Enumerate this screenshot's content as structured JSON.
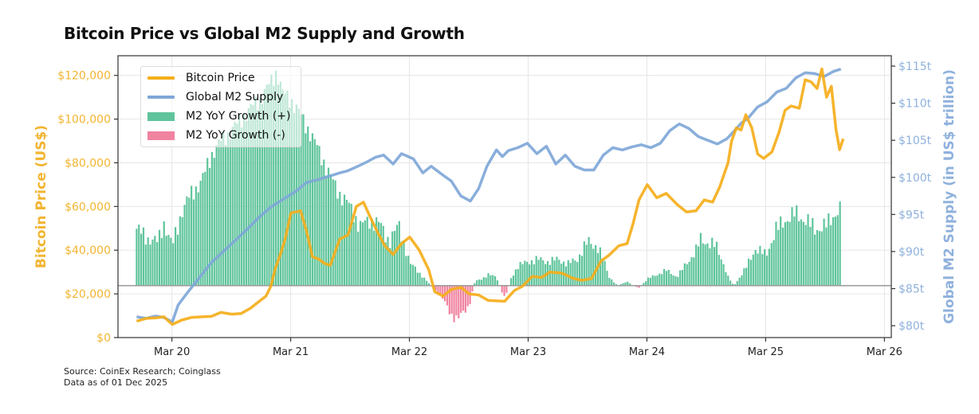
{
  "title": "Bitcoin Price vs Global M2 Supply and Growth",
  "source_line": "Source: CoinEx Research; Coinglass",
  "data_as_of": "Data as of 01 Dec 2025",
  "colors": {
    "bitcoin": "#F5AE1B",
    "m2": "#7FA7D8",
    "growth_pos": "#5FC49B",
    "growth_neg": "#F083A0",
    "left_axis_text": "#F2B531",
    "right_axis_text": "#8FB1DD"
  },
  "chart_data": {
    "type": "line",
    "title": "Bitcoin Price vs Global M2 Supply and Growth",
    "xlabel": "",
    "ylabel_left": "Bitcoin Price (US$)",
    "ylabel_right": "Global M2 Supply (in US$ trillion)",
    "x_tick_labels": [
      "Mar 20",
      "Mar 21",
      "Mar 22",
      "Mar 23",
      "Mar 24",
      "Mar 25",
      "Mar 26"
    ],
    "x_ticks": [
      2020.167,
      2021.167,
      2022.167,
      2023.167,
      2024.167,
      2025.167,
      2026.167
    ],
    "xlim": [
      2019.713,
      2026.225
    ],
    "y_left_tick_labels": [
      "$0",
      "$20,000",
      "$40,000",
      "$60,000",
      "$80,000",
      "$100,000",
      "$120,000"
    ],
    "y_left_ticks": [
      0,
      20000,
      40000,
      60000,
      80000,
      100000,
      120000
    ],
    "ylim_left": [
      0,
      129000
    ],
    "y_right_tick_labels": [
      "$80t",
      "$85t",
      "$90t",
      "$95t",
      "$100t",
      "$105t",
      "$110t",
      "$115t"
    ],
    "y_right_ticks": [
      80,
      85,
      90,
      95,
      100,
      105,
      110,
      115
    ],
    "ylim_right": [
      78.4,
      116.4
    ],
    "growth_baseline_m2": 85.4,
    "grid": true,
    "legend_position": "top-left",
    "legend": [
      "Bitcoin Price",
      "Global M2 Supply",
      "M2 YoY Growth (+)",
      "M2 YoY Growth (-)"
    ],
    "series": [
      {
        "name": "Bitcoin Price",
        "axis": "left",
        "x": [
          2019.87,
          2019.95,
          2020.03,
          2020.1,
          2020.17,
          2020.25,
          2020.33,
          2020.42,
          2020.5,
          2020.58,
          2020.67,
          2020.75,
          2020.83,
          2020.9,
          2020.96,
          2021.0,
          2021.04,
          2021.08,
          2021.12,
          2021.17,
          2021.25,
          2021.3,
          2021.35,
          2021.4,
          2021.45,
          2021.5,
          2021.58,
          2021.65,
          2021.72,
          2021.78,
          2021.83,
          2021.9,
          2021.96,
          2022.03,
          2022.1,
          2022.17,
          2022.25,
          2022.33,
          2022.38,
          2022.45,
          2022.52,
          2022.6,
          2022.67,
          2022.75,
          2022.83,
          2022.9,
          2022.97,
          2023.05,
          2023.12,
          2023.2,
          2023.28,
          2023.35,
          2023.45,
          2023.55,
          2023.62,
          2023.7,
          2023.78,
          2023.85,
          2023.93,
          2024.0,
          2024.05,
          2024.1,
          2024.17,
          2024.25,
          2024.33,
          2024.42,
          2024.5,
          2024.58,
          2024.65,
          2024.72,
          2024.78,
          2024.85,
          2024.88,
          2024.92,
          2024.96,
          2025.0,
          2025.05,
          2025.1,
          2025.15,
          2025.22,
          2025.28,
          2025.33,
          2025.38,
          2025.45,
          2025.5,
          2025.55,
          2025.6,
          2025.64,
          2025.68,
          2025.72,
          2025.76,
          2025.79,
          2025.82
        ],
        "values": [
          7500,
          8800,
          9000,
          9500,
          6000,
          8000,
          9200,
          9500,
          9700,
          11500,
          10700,
          11000,
          13500,
          16500,
          19000,
          23500,
          32000,
          38000,
          45000,
          57000,
          58000,
          49000,
          37000,
          36000,
          34000,
          33000,
          45000,
          47000,
          60000,
          62000,
          56000,
          48000,
          42000,
          38000,
          43000,
          46000,
          40000,
          31000,
          21000,
          19000,
          22000,
          23000,
          20000,
          19500,
          17000,
          16800,
          16600,
          21500,
          23500,
          28000,
          27500,
          30000,
          29500,
          27000,
          26200,
          27000,
          35000,
          37800,
          42000,
          43000,
          52000,
          63000,
          70000,
          64000,
          66000,
          61000,
          57500,
          58000,
          63000,
          62000,
          69000,
          80000,
          90000,
          96000,
          95000,
          102000,
          96000,
          84000,
          82000,
          85000,
          94000,
          104000,
          106000,
          105000,
          118000,
          117000,
          114000,
          123000,
          110000,
          115000,
          95000,
          86000,
          91000
        ]
      },
      {
        "name": "Global M2 Supply",
        "axis": "right",
        "x": [
          2019.87,
          2019.95,
          2020.03,
          2020.1,
          2020.17,
          2020.22,
          2020.3,
          2020.4,
          2020.5,
          2020.6,
          2020.7,
          2020.8,
          2020.9,
          2021.0,
          2021.1,
          2021.2,
          2021.3,
          2021.4,
          2021.5,
          2021.58,
          2021.65,
          2021.72,
          2021.8,
          2021.88,
          2021.95,
          2022.03,
          2022.1,
          2022.2,
          2022.28,
          2022.35,
          2022.45,
          2022.52,
          2022.6,
          2022.68,
          2022.75,
          2022.82,
          2022.9,
          2022.95,
          2023.0,
          2023.08,
          2023.16,
          2023.24,
          2023.32,
          2023.4,
          2023.48,
          2023.56,
          2023.64,
          2023.72,
          2023.8,
          2023.88,
          2023.96,
          2024.04,
          2024.12,
          2024.2,
          2024.28,
          2024.36,
          2024.44,
          2024.52,
          2024.6,
          2024.68,
          2024.76,
          2024.84,
          2024.9,
          2024.96,
          2025.02,
          2025.1,
          2025.18,
          2025.26,
          2025.34,
          2025.42,
          2025.5,
          2025.58,
          2025.66,
          2025.74,
          2025.8
        ],
        "values": [
          81.2,
          81.0,
          81.3,
          81.1,
          80.5,
          82.8,
          84.5,
          86.5,
          88.5,
          90.0,
          91.5,
          93.0,
          94.6,
          96.0,
          97.0,
          98.0,
          99.3,
          99.7,
          100.2,
          100.6,
          100.9,
          101.4,
          102.0,
          102.7,
          103.0,
          101.8,
          103.2,
          102.5,
          100.6,
          101.5,
          100.3,
          99.5,
          97.5,
          96.8,
          98.5,
          101.5,
          103.7,
          102.8,
          103.6,
          104.0,
          104.6,
          103.2,
          104.2,
          101.8,
          103.0,
          101.5,
          101.0,
          101.0,
          103.0,
          104.0,
          103.7,
          104.1,
          104.4,
          104.0,
          104.6,
          106.3,
          107.2,
          106.6,
          105.5,
          105.0,
          104.5,
          105.2,
          106.2,
          107.3,
          108.0,
          109.5,
          110.2,
          111.5,
          112.0,
          113.4,
          114.1,
          114.0,
          113.6,
          114.3,
          114.6
        ]
      },
      {
        "name": "M2 YoY Growth",
        "axis": "unlabeled",
        "unit": "relative to peak (1.0)",
        "x": [
          2019.87,
          2019.95,
          2020.05,
          2020.1,
          2020.17,
          2020.25,
          2020.33,
          2020.42,
          2020.5,
          2020.58,
          2020.67,
          2020.75,
          2020.83,
          2020.92,
          2021.0,
          2021.05,
          2021.1,
          2021.17,
          2021.25,
          2021.33,
          2021.42,
          2021.5,
          2021.58,
          2021.67,
          2021.75,
          2021.83,
          2021.92,
          2022.0,
          2022.08,
          2022.17,
          2022.22,
          2022.28,
          2022.35,
          2022.42,
          2022.47,
          2022.52,
          2022.57,
          2022.62,
          2022.67,
          2022.72,
          2022.77,
          2022.83,
          2022.9,
          2022.97,
          2023.02,
          2023.08,
          2023.17,
          2023.25,
          2023.33,
          2023.42,
          2023.5,
          2023.58,
          2023.62,
          2023.67,
          2023.75,
          2023.8,
          2023.85,
          2023.92,
          2024.0,
          2024.05,
          2024.1,
          2024.17,
          2024.25,
          2024.33,
          2024.42,
          2024.5,
          2024.58,
          2024.62,
          2024.67,
          2024.75,
          2024.8,
          2024.85,
          2024.9,
          2025.0,
          2025.08,
          2025.17,
          2025.25,
          2025.33,
          2025.42,
          2025.5,
          2025.58,
          2025.67,
          2025.75,
          2025.8
        ],
        "values": [
          0.26,
          0.22,
          0.2,
          0.29,
          0.18,
          0.34,
          0.42,
          0.48,
          0.6,
          0.66,
          0.71,
          0.76,
          0.81,
          0.86,
          0.93,
          0.98,
          0.88,
          0.85,
          0.78,
          0.7,
          0.6,
          0.5,
          0.42,
          0.36,
          0.27,
          0.3,
          0.28,
          0.2,
          0.28,
          0.1,
          0.08,
          0.04,
          0.0,
          -0.04,
          -0.08,
          -0.13,
          -0.16,
          -0.12,
          -0.09,
          0.02,
          0.03,
          0.05,
          0.04,
          -0.06,
          0.03,
          0.09,
          0.11,
          0.12,
          0.11,
          0.12,
          0.1,
          0.12,
          0.16,
          0.2,
          0.18,
          0.12,
          0.04,
          0.0,
          0.02,
          0.0,
          -0.01,
          0.03,
          0.05,
          0.07,
          0.04,
          0.1,
          0.16,
          0.21,
          0.2,
          0.18,
          0.12,
          0.04,
          0.0,
          0.08,
          0.17,
          0.14,
          0.25,
          0.3,
          0.33,
          0.3,
          0.26,
          0.27,
          0.33,
          0.35
        ]
      }
    ]
  }
}
